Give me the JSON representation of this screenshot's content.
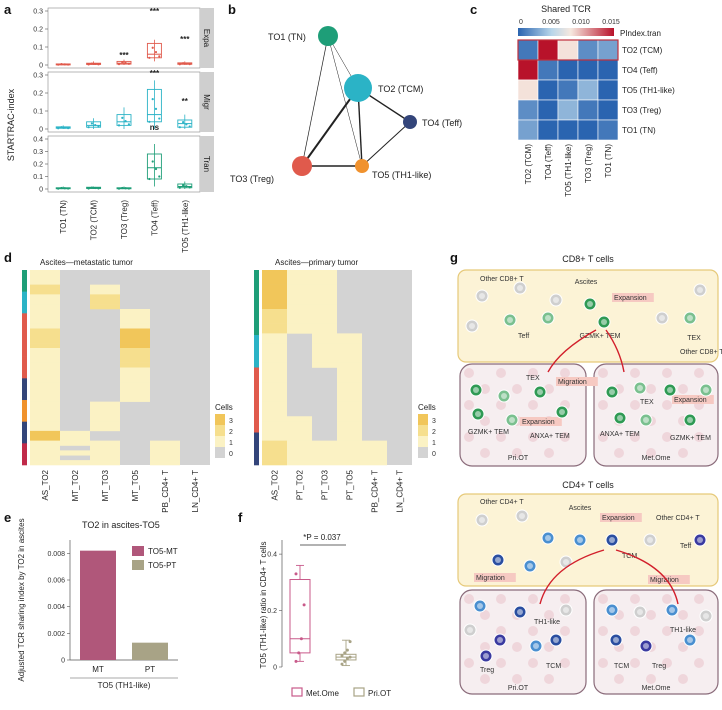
{
  "panels": {
    "a": {
      "label": "a",
      "ylabel": "STARTRAC-index",
      "strip_labels": [
        "Expa",
        "Migr",
        "Tran"
      ],
      "categories": [
        "TO1 (TN)",
        "TO2 (TCM)",
        "TO3 (Treg)",
        "TO4 (Teff)",
        "TO5 (TH1-like)"
      ],
      "yticks": [
        [
          "0",
          "0.1",
          "0.2",
          "0.3"
        ],
        [
          "0",
          "0.1",
          "0.2",
          "0.3"
        ],
        [
          "0",
          "0.1",
          "0.2",
          "0.3",
          "0.4"
        ]
      ],
      "annotations": {
        "expa": [
          "***",
          "***",
          "***"
        ],
        "migr": [
          "***",
          "**",
          "ns"
        ]
      },
      "colors": {
        "expa": "#e05a4c",
        "migr": "#2bb3c6",
        "tran": "#1e9e78",
        "strip": "#cfcfcf"
      }
    },
    "b": {
      "label": "b",
      "nodes": [
        "TO1 (TN)",
        "TO2 (TCM)",
        "TO4 (Teff)",
        "TO3 (Treg)",
        "TO5 (TH1-like)"
      ],
      "node_colors": [
        "#1e9e78",
        "#2bb3c6",
        "#33457a",
        "#e05a4c",
        "#f0922e"
      ]
    },
    "c": {
      "label": "c",
      "title": "Shared TCR",
      "legend_ticks": [
        "0",
        "0.005",
        "0.010",
        "0.015"
      ],
      "legend_name": "PIndex.tran",
      "rows": [
        "TO2 (TCM)",
        "TO4 (Teff)",
        "TO5 (TH1-like)",
        "TO3 (Treg)",
        "TO1 (TN)"
      ],
      "cols": [
        "TO2 (TCM)",
        "TO4 (Teff)",
        "TO5 (TH1-like)",
        "TO3 (Treg)",
        "TO1 (TN)"
      ],
      "values": [
        [
          0.0,
          0.016,
          0.009,
          0.002,
          0.003
        ],
        [
          0.016,
          0.0,
          0.0,
          0.0,
          0.0
        ],
        [
          0.009,
          0.0,
          0.0,
          0.004,
          0.0
        ],
        [
          0.002,
          0.0,
          0.004,
          0.0,
          0.0
        ],
        [
          0.003,
          0.0,
          0.0,
          0.0,
          0.0
        ]
      ]
    },
    "d": {
      "label": "d",
      "left_title": "Ascites—metastatic tumor",
      "right_title": "Ascites—primary tumor",
      "left_cols": [
        "AS_TO2",
        "MT_TO2",
        "MT_TO3",
        "MT_TO5",
        "PB_CD4+ T",
        "LN_CD4+ T"
      ],
      "right_cols": [
        "AS_TO2",
        "PT_TO2",
        "PT_TO3",
        "PT_TO5",
        "PB_CD4+ T",
        "LN_CD4+ T"
      ],
      "legend_title": "Cells",
      "legend_ticks": [
        "3",
        "2",
        "1",
        "0"
      ]
    },
    "e": {
      "label": "e",
      "title": "TO2 in ascites-TO5",
      "ylabel": "Adjusted TCR sharing index by TO2 in ascites",
      "xlabel": "TO5 (TH1-like)",
      "yticks": [
        "0",
        "0.002",
        "0.004",
        "0.006",
        "0.008"
      ],
      "ylim": [
        0,
        0.009
      ],
      "legend": [
        "TO5-MT",
        "TO5-PT"
      ]
    },
    "f": {
      "label": "f",
      "annotation": "*P = 0.037",
      "ylabel": "TO5 (TH1-like) ratio in CD4+ T cells",
      "yticks": [
        "0",
        "0.2",
        "0.4"
      ],
      "legend": [
        "Met.Ome",
        "Pri.OT"
      ]
    },
    "g": {
      "label": "g",
      "cd8": {
        "title": "CD8+ T cells",
        "ascites": "Ascites",
        "other": "Other CD8+ T",
        "expansion": "Expansion",
        "migration": "Migration",
        "teff": "Teff",
        "tex": "TEX",
        "gzmk": "GZMK+ TEM",
        "anxa": "ANXA+ TEM",
        "pri": "Pri.OT",
        "met": "Met.Ome"
      },
      "cd4": {
        "title": "CD4+ T cells",
        "ascites": "Ascites",
        "other": "Other CD4+ T",
        "expansion": "Expansion",
        "migration": "Migration",
        "tcm": "TCM",
        "teff": "Teff",
        "th1": "TH1-like",
        "treg": "Treg",
        "pri": "Pri.OT",
        "met": "Met.Ome"
      }
    }
  },
  "chart_data": [
    {
      "type": "bar",
      "title": "TO2 in ascites-TO5",
      "categories": [
        "MT",
        "PT"
      ],
      "values": [
        0.0082,
        0.0013
      ],
      "xlabel": "TO5 (TH1-like)",
      "ylabel": "Adjusted TCR sharing index by TO2 in ascites",
      "ylim": [
        0,
        0.009
      ],
      "colors": [
        "#b0577a",
        "#a8a386"
      ]
    },
    {
      "type": "box",
      "categories": [
        "Met.Ome",
        "Pri.OT"
      ],
      "series": [
        {
          "name": "Met.Ome",
          "min": 0.02,
          "q1": 0.05,
          "median": 0.1,
          "q3": 0.31,
          "max": 0.36,
          "points": [
            0.02,
            0.05,
            0.1,
            0.22,
            0.33
          ]
        },
        {
          "name": "Pri.OT",
          "min": 0.005,
          "q1": 0.025,
          "median": 0.035,
          "q3": 0.045,
          "max": 0.095,
          "points": [
            0.01,
            0.02,
            0.03,
            0.035,
            0.04,
            0.05,
            0.06,
            0.09
          ]
        }
      ],
      "ylim": [
        0,
        0.45
      ],
      "ylabel": "TO5 (TH1-like) ratio in CD4+ T cells",
      "colors": [
        "#c85a8a",
        "#a8a386"
      ]
    }
  ]
}
